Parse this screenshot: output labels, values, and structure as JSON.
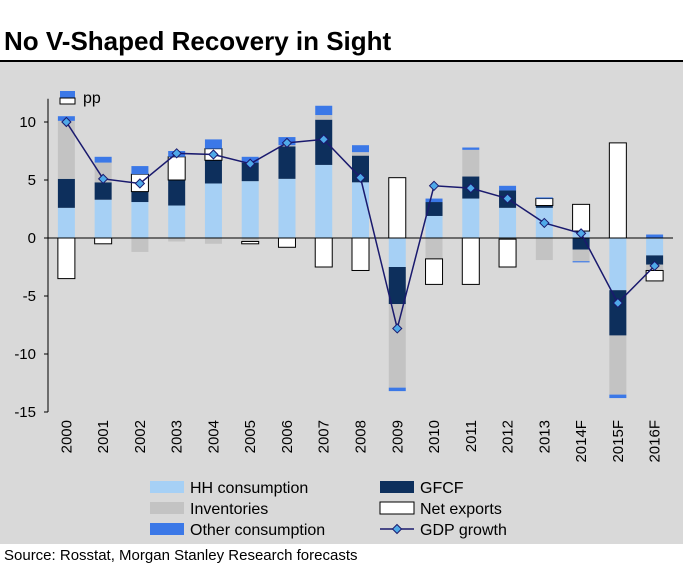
{
  "title": "No V-Shaped Recovery in Sight",
  "source": "Source: Rosstat, Morgan Stanley Research forecasts",
  "chart_data": {
    "type": "bar",
    "subtype": "stacked bar with line overlay",
    "unit_label": "pp",
    "categories": [
      "2000",
      "2001",
      "2002",
      "2003",
      "2004",
      "2005",
      "2006",
      "2007",
      "2008",
      "2009",
      "2010",
      "2011",
      "2012",
      "2013",
      "2014F",
      "2015F",
      "2016F"
    ],
    "ylim": [
      -15,
      12
    ],
    "yticks": [
      10,
      5,
      0,
      -5,
      -10,
      -15
    ],
    "grid": false,
    "legend_position": "bottom",
    "series": [
      {
        "name": "HH consumption",
        "kind": "bar",
        "color": "#a6d0f5",
        "values": [
          2.6,
          3.3,
          3.1,
          2.8,
          4.7,
          4.9,
          5.1,
          6.3,
          4.8,
          -2.5,
          1.9,
          3.4,
          2.6,
          2.6,
          0.6,
          -4.5,
          -1.5
        ]
      },
      {
        "name": "GFCF",
        "kind": "bar",
        "color": "#0d2f5c",
        "values": [
          2.5,
          1.5,
          0.9,
          2.2,
          2.0,
          1.6,
          2.8,
          3.9,
          2.3,
          -3.2,
          1.2,
          1.9,
          1.5,
          0.2,
          -1.0,
          -3.9,
          -0.8
        ]
      },
      {
        "name": "Inventories",
        "kind": "bar",
        "color": "#c3c3c3",
        "values": [
          5.0,
          1.7,
          -1.2,
          -0.3,
          -0.5,
          -0.3,
          0.1,
          0.4,
          0.3,
          -7.2,
          -1.8,
          2.3,
          -0.1,
          -1.9,
          -1.0,
          -5.1,
          -0.5
        ]
      },
      {
        "name": "Net exports",
        "kind": "bar",
        "color": "#ffffff",
        "values": [
          -3.5,
          -0.5,
          1.5,
          2.0,
          1.0,
          -0.2,
          -0.8,
          -2.5,
          -2.8,
          5.2,
          -2.2,
          -4.0,
          -2.4,
          0.6,
          2.3,
          8.2,
          -0.9
        ]
      },
      {
        "name": "Other consumption",
        "kind": "bar",
        "color": "#3b78e7",
        "values": [
          0.4,
          0.5,
          0.7,
          0.5,
          0.8,
          0.5,
          0.7,
          0.8,
          0.6,
          -0.3,
          0.3,
          0.2,
          0.4,
          0.1,
          -0.1,
          -0.3,
          0.3
        ]
      },
      {
        "name": "GDP growth",
        "kind": "line",
        "color": "#1a1a6e",
        "values": [
          10.0,
          5.1,
          4.7,
          7.3,
          7.2,
          6.4,
          8.2,
          8.5,
          5.2,
          -7.8,
          4.5,
          4.3,
          3.4,
          1.3,
          0.4,
          -5.6,
          -2.4
        ]
      }
    ]
  }
}
